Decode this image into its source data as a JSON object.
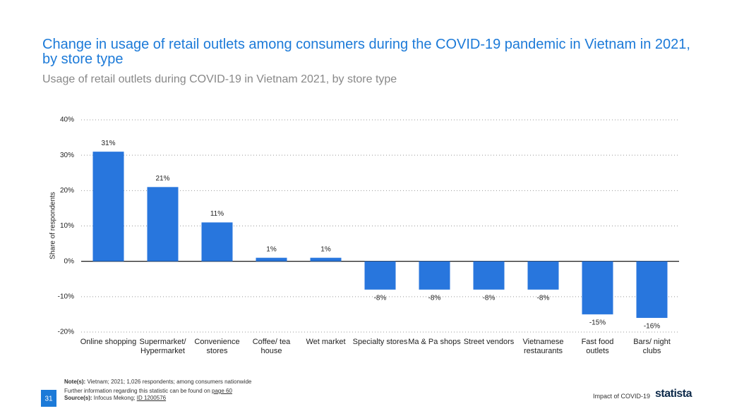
{
  "chart_data": {
    "type": "bar",
    "title": "Change in usage of retail outlets among consumers during the COVID-19 pandemic in Vietnam in 2021, by store type",
    "subtitle": "Usage of retail outlets during COVID-19 in Vietnam 2021, by store type",
    "y_label": "Share of respondents",
    "categories": [
      "Online shopping",
      "Supermarket/ Hypermarket",
      "Convenience stores",
      "Coffee/ tea house",
      "Wet market",
      "Specialty stores",
      "Ma & Pa shops",
      "Street vendors",
      "Vietnamese restaurants",
      "Fast food outlets",
      "Bars/ night clubs"
    ],
    "values": [
      31,
      21,
      11,
      1,
      1,
      -8,
      -8,
      -8,
      -8,
      -15,
      -16
    ],
    "value_labels": [
      "31%",
      "21%",
      "11%",
      "1%",
      "1%",
      "-8%",
      "-8%",
      "-8%",
      "-8%",
      "-15%",
      "-16%"
    ],
    "color": "#2876dd",
    "ylim": [
      -20,
      40
    ],
    "yticks": [
      {
        "value": -20,
        "label": "-20%"
      },
      {
        "value": -10,
        "label": "-10%"
      },
      {
        "value": 0,
        "label": "0%"
      },
      {
        "value": 10,
        "label": "10%"
      },
      {
        "value": 20,
        "label": "20%"
      },
      {
        "value": 30,
        "label": "30%"
      },
      {
        "value": 40,
        "label": "40%"
      }
    ],
    "grid": true
  },
  "footer": {
    "note_label": "Note(s):",
    "note": "Vietnam; 2021; 1,026 respondents; among consumers nationwide",
    "further": "Further information regarding this statistic can be found on",
    "further_link": "page 60",
    "source_label": "Source(s):",
    "source": "Infocus Mekong;",
    "source_id": "ID 1200576",
    "page_number": "31",
    "section": "Impact of COVID-19",
    "brand": "statista"
  }
}
